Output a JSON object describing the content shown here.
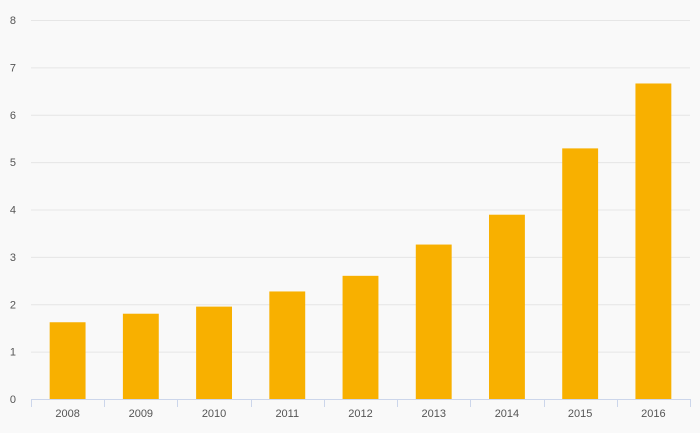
{
  "chart_data": {
    "type": "bar",
    "categories": [
      "2008",
      "2009",
      "2010",
      "2011",
      "2012",
      "2013",
      "2014",
      "2015",
      "2016"
    ],
    "values": [
      1.62,
      1.8,
      1.95,
      2.27,
      2.6,
      3.26,
      3.89,
      5.29,
      6.66
    ],
    "yticks": [
      "0",
      "1",
      "2",
      "3",
      "4",
      "5",
      "6",
      "7",
      "8"
    ],
    "ylim": [
      0,
      8
    ],
    "grid": true,
    "legend": "none",
    "title": "",
    "xlabel": "",
    "ylabel": "",
    "colors": {
      "bar": "#f8b000",
      "grid": "#e6e6e6",
      "axis": "#ccd6eb",
      "text": "#555555",
      "background": "#f9f9f9"
    }
  }
}
